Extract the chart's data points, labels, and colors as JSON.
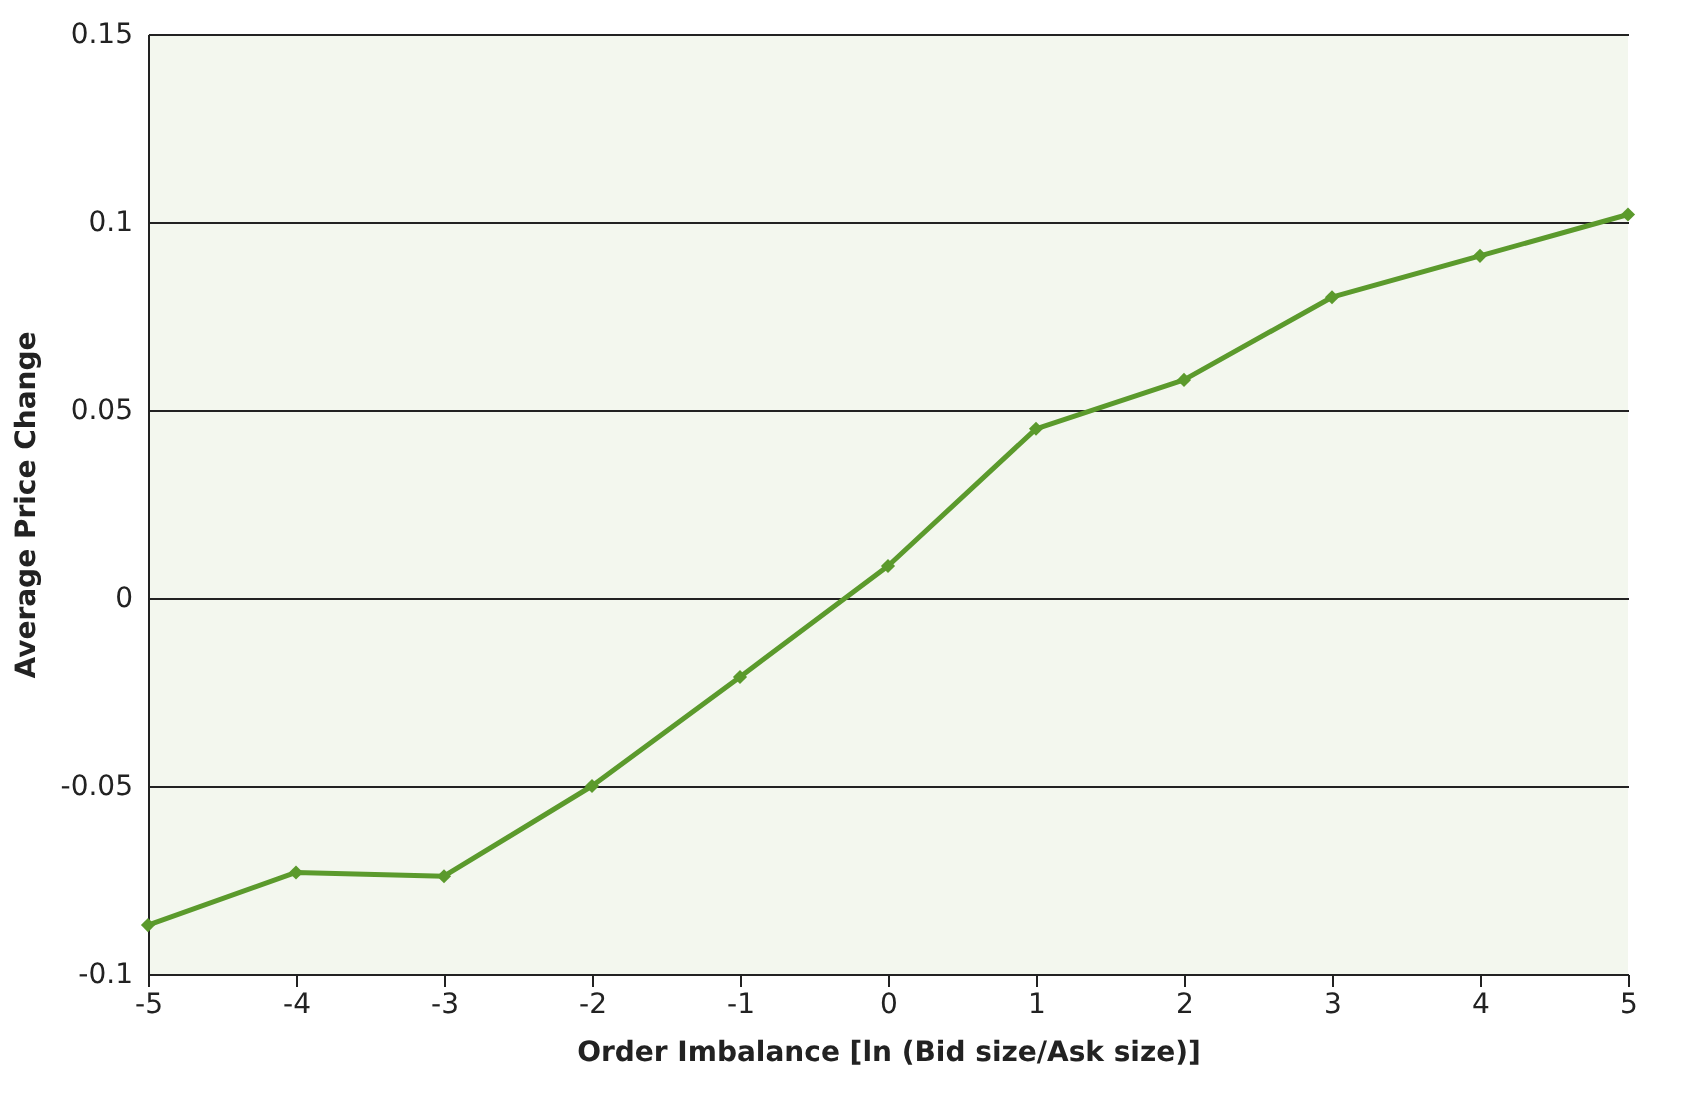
{
  "chart_data": {
    "type": "line",
    "xlabel": "Order Imbalance [ln (Bid size/Ask size)]",
    "ylabel": "Average Price Change",
    "x": [
      -5,
      -4,
      -3,
      -2,
      -1,
      0,
      1,
      2,
      3,
      4,
      5
    ],
    "series": [
      {
        "color": "#5b9a2c",
        "values": [
          -0.087,
          -0.073,
          -0.074,
          -0.05,
          -0.021,
          0.0085,
          0.045,
          0.058,
          0.08,
          0.091,
          0.102
        ]
      }
    ],
    "xlim": [
      -5,
      5
    ],
    "xticks": [
      -5,
      -4,
      -3,
      -2,
      -1,
      0,
      1,
      2,
      3,
      4,
      5
    ],
    "ylim": [
      -0.1,
      0.15
    ],
    "yticks": [
      -0.1,
      -0.05,
      0,
      0.05,
      0.1,
      0.15
    ],
    "grid": "y",
    "marker": "diamond",
    "line_style": "solid"
  }
}
